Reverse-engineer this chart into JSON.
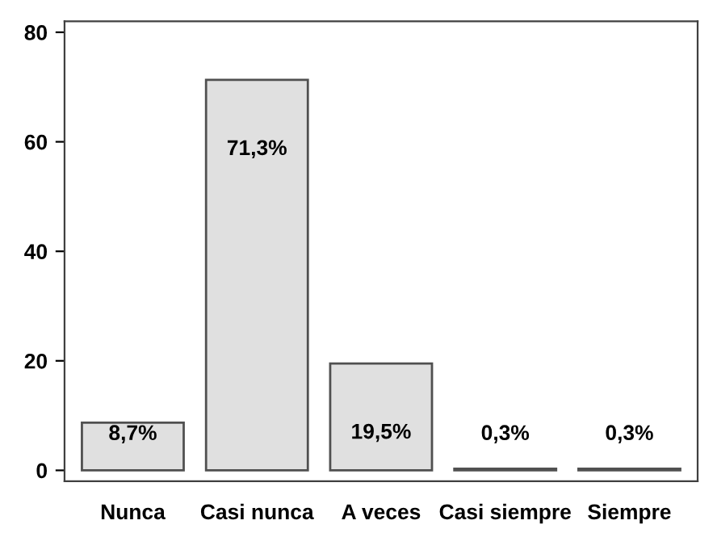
{
  "chart_data": {
    "type": "bar",
    "categories": [
      "Nunca",
      "Casi nunca",
      "A veces",
      "Casi siempre",
      "Siempre"
    ],
    "values": [
      8.7,
      71.3,
      19.5,
      0.3,
      0.3
    ],
    "value_labels": [
      "8,7%",
      "71,3%",
      "19,5%",
      "0,3%",
      "0,3%"
    ],
    "color": "#e0e0e0",
    "ylim": [
      -2,
      82
    ],
    "yticks": [
      0,
      20,
      40,
      60,
      80
    ],
    "grid": false,
    "legend": false
  }
}
